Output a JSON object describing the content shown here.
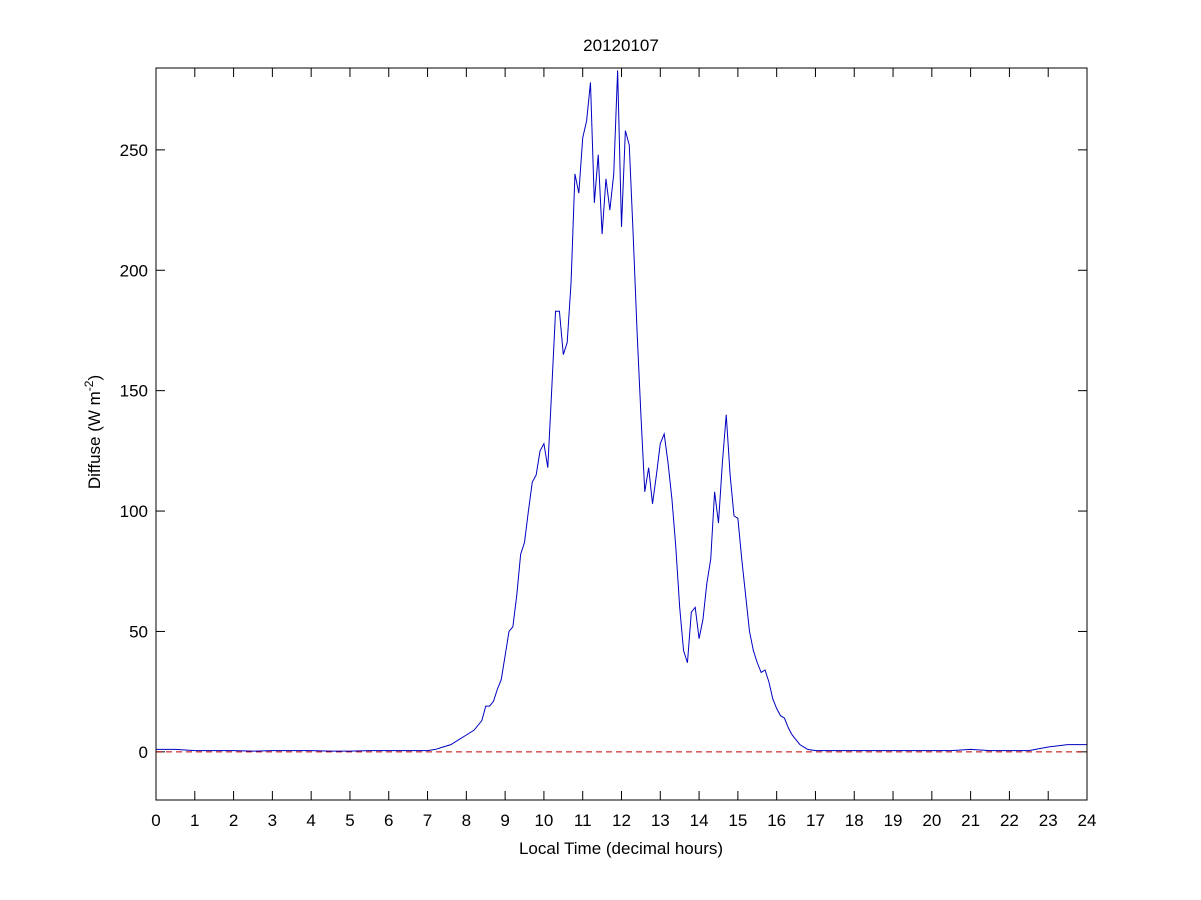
{
  "chart_data": {
    "type": "line",
    "title": "20120107",
    "xlabel": "Local Time (decimal hours)",
    "ylabel": "Diffuse (W m",
    "ylabel_sup": "-2",
    "ylabel_end": ")",
    "x": [
      0,
      0.5,
      1,
      1.5,
      2,
      2.5,
      3,
      3.5,
      4,
      4.5,
      5,
      5.5,
      6,
      6.5,
      7,
      7.2,
      7.4,
      7.6,
      7.8,
      8,
      8.2,
      8.4,
      8.5,
      8.6,
      8.7,
      8.8,
      8.9,
      9,
      9.1,
      9.2,
      9.3,
      9.4,
      9.5,
      9.6,
      9.7,
      9.8,
      9.9,
      10,
      10.1,
      10.2,
      10.3,
      10.4,
      10.5,
      10.6,
      10.7,
      10.8,
      10.9,
      11,
      11.1,
      11.2,
      11.3,
      11.4,
      11.5,
      11.6,
      11.7,
      11.8,
      11.9,
      12,
      12.1,
      12.2,
      12.3,
      12.4,
      12.5,
      12.6,
      12.7,
      12.8,
      12.9,
      13,
      13.1,
      13.2,
      13.3,
      13.4,
      13.5,
      13.6,
      13.7,
      13.8,
      13.9,
      14,
      14.1,
      14.2,
      14.3,
      14.4,
      14.5,
      14.6,
      14.7,
      14.8,
      14.9,
      15,
      15.1,
      15.2,
      15.3,
      15.4,
      15.5,
      15.6,
      15.7,
      15.8,
      15.9,
      16,
      16.1,
      16.2,
      16.3,
      16.4,
      16.5,
      16.6,
      16.7,
      16.8,
      17,
      17.5,
      18,
      18.5,
      19,
      19.5,
      20,
      20.5,
      21,
      21.5,
      22,
      22.5,
      23,
      23.5,
      24
    ],
    "series": [
      {
        "name": "Diffuse",
        "color": "#0000c0",
        "values": [
          1,
          1,
          0.5,
          0.5,
          0.5,
          0.3,
          0.5,
          0.5,
          0.5,
          0.3,
          0.3,
          0.5,
          0.5,
          0.5,
          0.5,
          1,
          2,
          3,
          5,
          7,
          9,
          13,
          19,
          19,
          21,
          26,
          30,
          40,
          50,
          52,
          65,
          82,
          87,
          100,
          112,
          115,
          125,
          128,
          118,
          150,
          183,
          183,
          165,
          170,
          195,
          240,
          232,
          255,
          262,
          278,
          228,
          248,
          215,
          238,
          225,
          240,
          283,
          218,
          258,
          252,
          215,
          175,
          140,
          108,
          118,
          103,
          115,
          128,
          132,
          120,
          105,
          85,
          60,
          42,
          37,
          58,
          60,
          47,
          55,
          70,
          80,
          108,
          95,
          120,
          140,
          115,
          98,
          97,
          80,
          65,
          50,
          42,
          37,
          33,
          34,
          29,
          22,
          18,
          15,
          14,
          10,
          7,
          5,
          3,
          2,
          1,
          0.5,
          0.5,
          0.5,
          0.5,
          0.5,
          0.5,
          0.5,
          0.5,
          1,
          0.5,
          0.5,
          0.5,
          2,
          3,
          3
        ]
      }
    ],
    "reference_lines": [
      {
        "value": 0,
        "color": "#c00000",
        "style": "dashed"
      }
    ],
    "xlim": [
      0,
      24
    ],
    "xticks": [
      0,
      1,
      2,
      3,
      4,
      5,
      6,
      7,
      8,
      9,
      10,
      11,
      12,
      13,
      14,
      15,
      16,
      17,
      18,
      19,
      20,
      21,
      22,
      23,
      24
    ],
    "ylim": [
      -20,
      284
    ],
    "yticks": [
      0,
      50,
      100,
      150,
      200,
      250
    ],
    "grid": false
  }
}
